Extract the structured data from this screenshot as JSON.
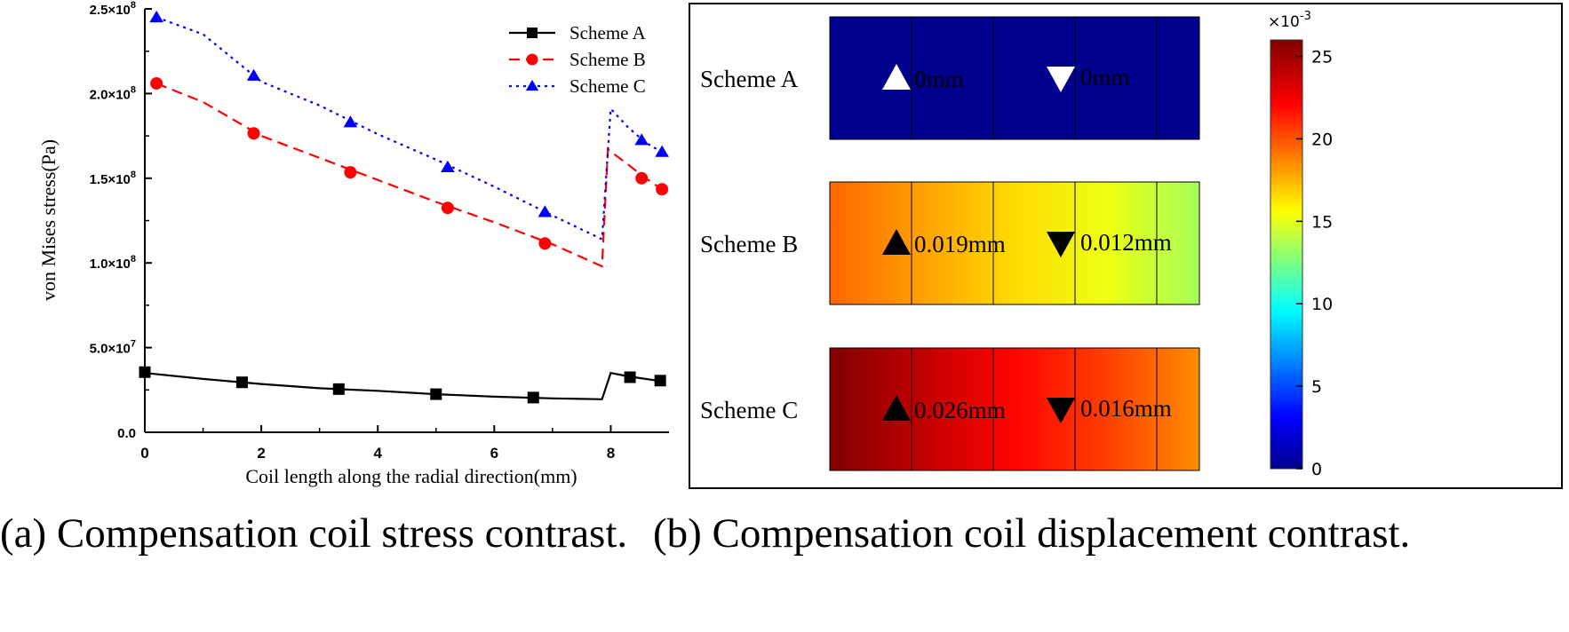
{
  "captions": {
    "a": "(a) Compensation coil stress contrast.",
    "b": "(b) Compensation coil displacement contrast."
  },
  "chart_data": [
    {
      "type": "line",
      "xlabel": "Coil length along the radial direction(mm)",
      "ylabel": "von Mises stress(Pa)",
      "xlim": [
        0,
        9
      ],
      "ylim": [
        0,
        250000000
      ],
      "xticks": [
        0,
        2,
        4,
        6,
        8
      ],
      "xtick_labels": [
        "0",
        "2",
        "4",
        "6",
        "8"
      ],
      "yticks": [
        0,
        50000000,
        100000000,
        150000000,
        200000000,
        250000000
      ],
      "ytick_labels": [
        {
          "mant": "0.0",
          "exp": ""
        },
        {
          "mant": "5.0×10",
          "exp": "7"
        },
        {
          "mant": "1.0×10",
          "exp": "8"
        },
        {
          "mant": "1.5×10",
          "exp": "8"
        },
        {
          "mant": "2.0×10",
          "exp": "8"
        },
        {
          "mant": "2.5×10",
          "exp": "8"
        }
      ],
      "legend_position": "top-right",
      "series": [
        {
          "name": "Scheme A",
          "color": "#000000",
          "dash": "solid",
          "marker": "square",
          "line_x": [
            0,
            1,
            2,
            3,
            4,
            5,
            6,
            7,
            7.85,
            8.0,
            8.3,
            8.6,
            8.9
          ],
          "line_y": [
            35000000,
            31500000,
            28500000,
            26000000,
            24500000,
            22500000,
            21000000,
            20000000,
            19500000,
            35000000,
            33000000,
            31500000,
            30000000
          ],
          "marker_x": [
            0,
            1.67,
            3.33,
            5.0,
            6.67,
            8.33,
            8.85
          ],
          "marker_y": [
            35500000,
            29500000,
            25500000,
            22500000,
            20500000,
            32500000,
            30500000
          ]
        },
        {
          "name": "Scheme B",
          "color": "#ff0000",
          "dash": "dashed",
          "marker": "circle",
          "line_x": [
            0.2,
            1.0,
            2.0,
            3.0,
            4.0,
            5.0,
            6.0,
            7.0,
            7.85,
            7.95,
            8.3,
            8.6,
            8.9
          ],
          "line_y": [
            206000000,
            195000000,
            175000000,
            162000000,
            149000000,
            136000000,
            124000000,
            111000000,
            98000000,
            167000000,
            158000000,
            150000000,
            143000000
          ],
          "marker_x": [
            0.2,
            1.87,
            3.53,
            5.2,
            6.87,
            8.53,
            8.88
          ],
          "marker_y": [
            206000000,
            176500000,
            153500000,
            132500000,
            111500000,
            150000000,
            143500000
          ]
        },
        {
          "name": "Scheme C",
          "color": "#0000ff",
          "dash": "dotted",
          "marker": "triangle-up",
          "line_x": [
            0.2,
            1.0,
            2.0,
            3.0,
            4.0,
            5.0,
            6.0,
            7.0,
            7.85,
            8.0,
            8.3,
            8.6,
            8.9
          ],
          "line_y": [
            245000000,
            235000000,
            207000000,
            193000000,
            176000000,
            161000000,
            145000000,
            128000000,
            114000000,
            191000000,
            180000000,
            171000000,
            165000000
          ],
          "marker_x": [
            0.2,
            1.87,
            3.53,
            5.2,
            6.87,
            8.53,
            8.88
          ],
          "marker_y": [
            245000000,
            210500000,
            183000000,
            156500000,
            130000000,
            172500000,
            165500000
          ]
        }
      ]
    },
    {
      "type": "heatmap",
      "colorbar": {
        "min": 0,
        "max": 26,
        "exponent_label": "×10",
        "exponent": "-3",
        "ticks": [
          0,
          5,
          10,
          15,
          20,
          25
        ],
        "tick_labels": [
          "0",
          "5",
          "10",
          "15",
          "20",
          "25"
        ],
        "colormap": "rainbow"
      },
      "rows": [
        {
          "label": "Scheme A",
          "field": [
            0,
            0,
            0,
            0,
            0
          ],
          "up_value": "0mm",
          "down_value": "0mm",
          "marker_color": "#ffffff"
        },
        {
          "label": "Scheme B",
          "field": [
            19.5,
            18.0,
            16.5,
            15.2,
            13.5
          ],
          "up_value": "0.019mm",
          "down_value": "0.012mm",
          "marker_color": "#000000"
        },
        {
          "label": "Scheme C",
          "field": [
            26.0,
            24.0,
            22.0,
            20.5,
            18.5
          ],
          "up_value": "0.026mm",
          "down_value": "0.016mm",
          "marker_color": "#000000"
        }
      ]
    }
  ]
}
